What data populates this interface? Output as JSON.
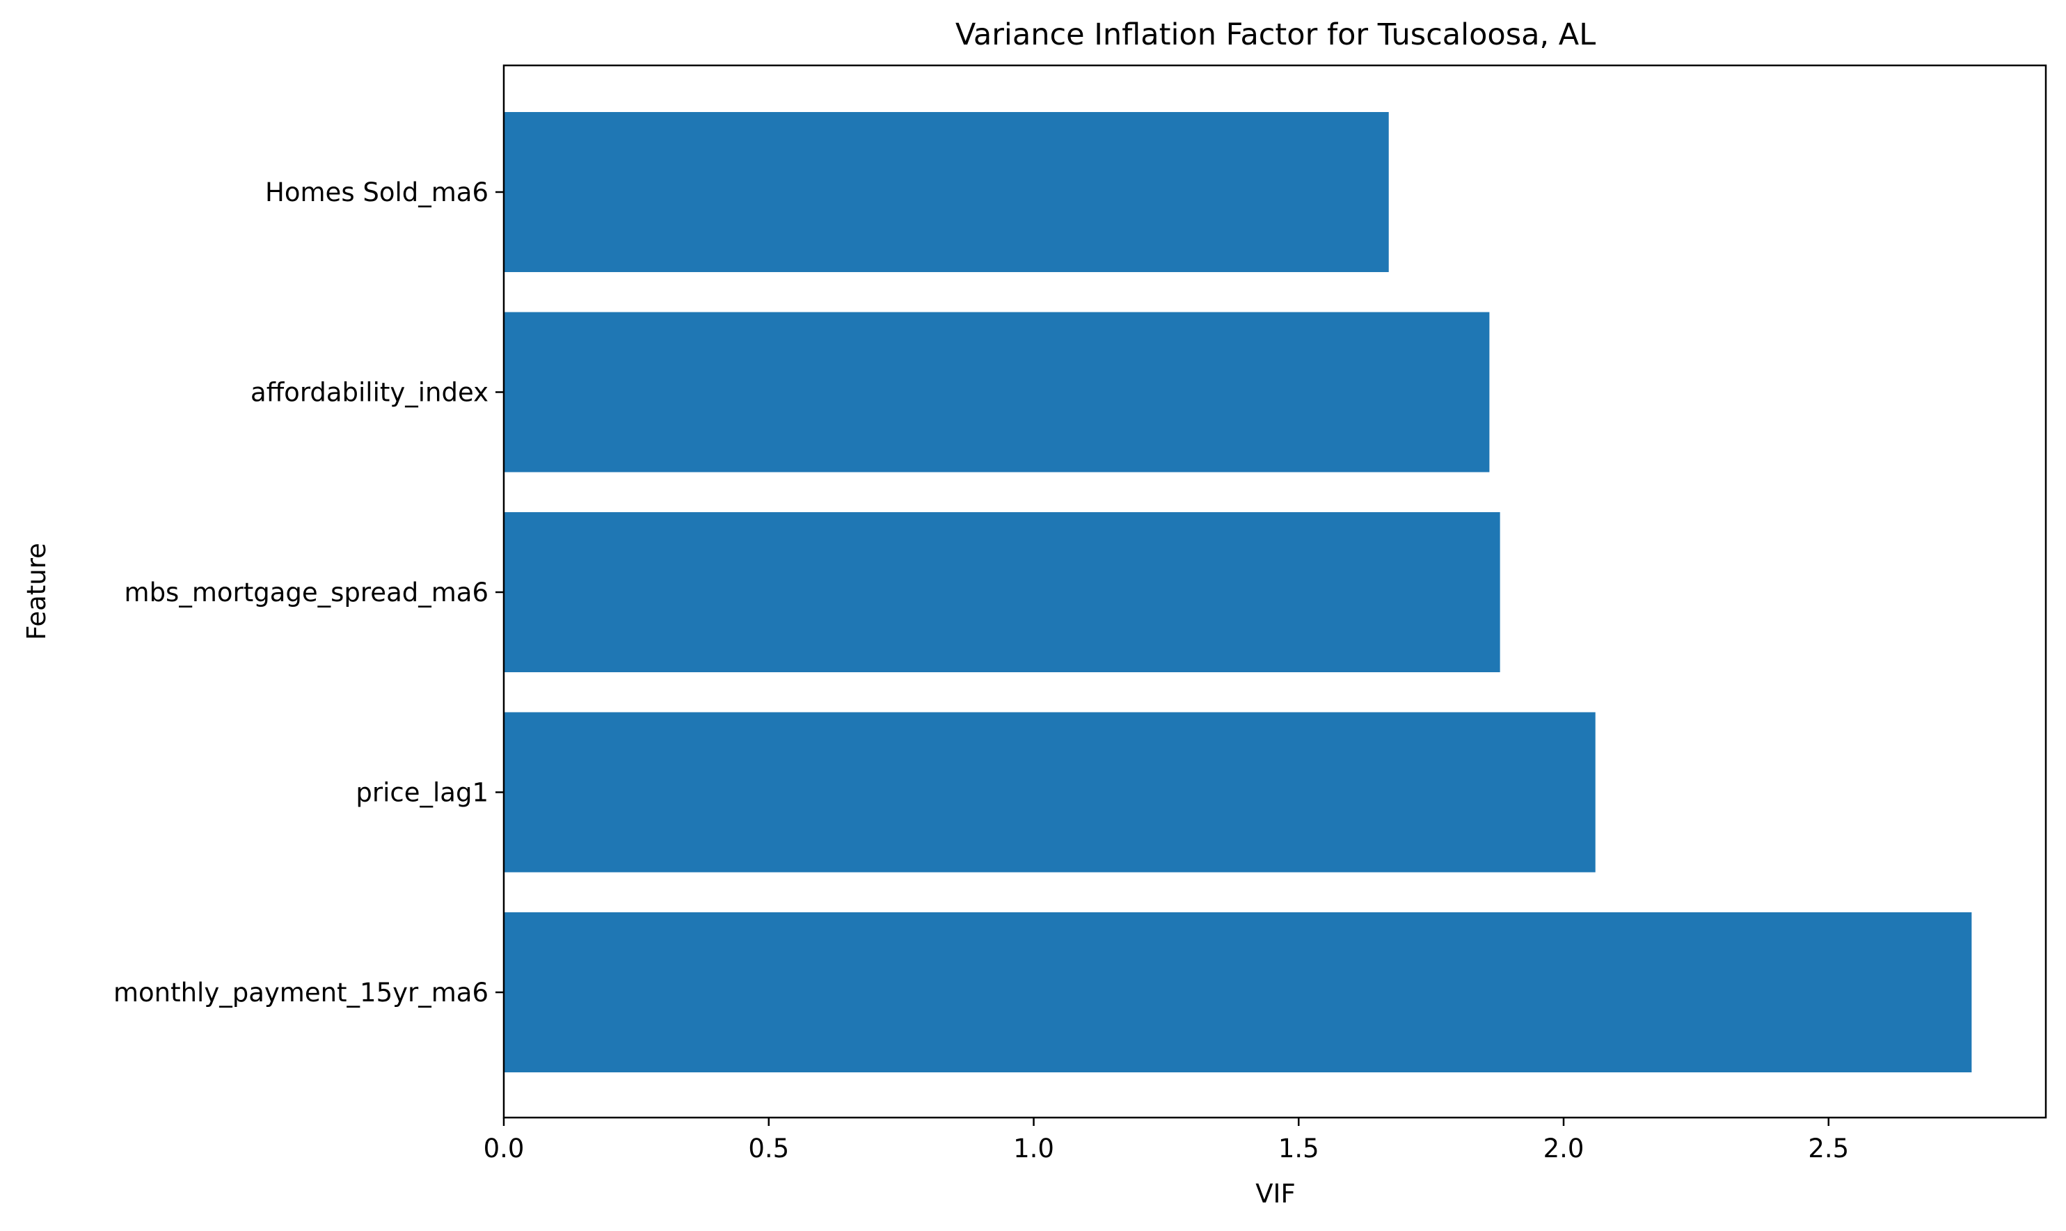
{
  "chart_data": {
    "type": "bar",
    "orientation": "horizontal",
    "title": "Variance Inflation Factor for Tuscaloosa, AL",
    "xlabel": "VIF",
    "ylabel": "Feature",
    "categories": [
      "Homes Sold_ma6",
      "affordability_index",
      "mbs_mortgage_spread_ma6",
      "price_lag1",
      "monthly_payment_15yr_ma6"
    ],
    "values": [
      1.67,
      1.86,
      1.88,
      2.06,
      2.77
    ],
    "xlim": [
      0,
      2.91
    ],
    "x_ticks": [
      "0.0",
      "0.5",
      "1.0",
      "1.5",
      "2.0",
      "2.5"
    ],
    "grid": false,
    "bar_color": "#1f77b4"
  }
}
